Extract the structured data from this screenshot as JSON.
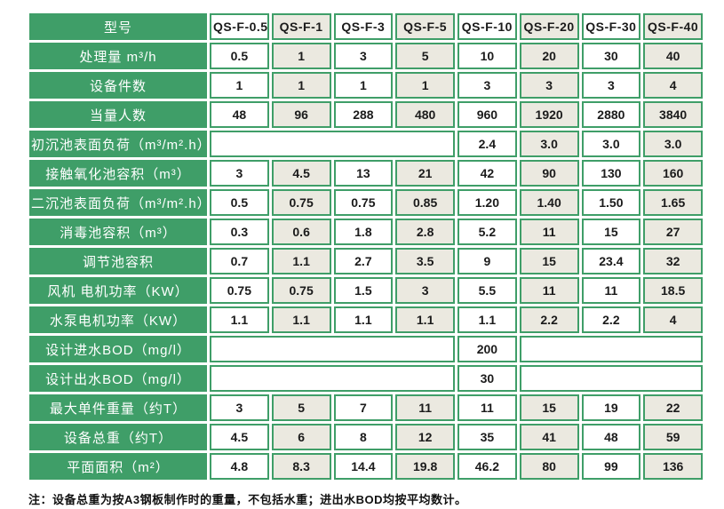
{
  "colors": {
    "green": "#3f9e68",
    "beige": "#ebe9e0",
    "white": "#ffffff"
  },
  "table": {
    "header": {
      "label": "型号",
      "models": [
        "QS-F-0.5",
        "QS-F-1",
        "QS-F-3",
        "QS-F-5",
        "QS-F-10",
        "QS-F-20",
        "QS-F-30",
        "QS-F-40"
      ]
    },
    "rows": [
      {
        "label": "处理量 m³/h",
        "cells": [
          "0.5",
          "1",
          "3",
          "5",
          "10",
          "20",
          "30",
          "40"
        ]
      },
      {
        "label": "设备件数",
        "cells": [
          "1",
          "1",
          "1",
          "1",
          "3",
          "3",
          "3",
          "4"
        ]
      },
      {
        "label": "当量人数",
        "cells": [
          "48",
          "96",
          "288",
          "480",
          "960",
          "1920",
          "2880",
          "3840"
        ]
      },
      {
        "label": "初沉池表面负荷（m³/m².h）",
        "cells": [
          {
            "span": 4,
            "text": ""
          },
          "2.4",
          "3.0",
          "3.0",
          "3.0"
        ]
      },
      {
        "label": "接触氧化池容积（m³）",
        "cells": [
          "3",
          "4.5",
          "13",
          "21",
          "42",
          "90",
          "130",
          "160"
        ]
      },
      {
        "label": "二沉池表面负荷（m³/m².h）",
        "cells": [
          "0.5",
          "0.75",
          "0.75",
          "0.85",
          "1.20",
          "1.40",
          "1.50",
          "1.65"
        ]
      },
      {
        "label": "消毒池容积（m³）",
        "cells": [
          "0.3",
          "0.6",
          "1.8",
          "2.8",
          "5.2",
          "11",
          "15",
          "27"
        ]
      },
      {
        "label": "调节池容积",
        "cells": [
          "0.7",
          "1.1",
          "2.7",
          "3.5",
          "9",
          "15",
          "23.4",
          "32"
        ]
      },
      {
        "label": "风机 电机功率（KW）",
        "cells": [
          "0.75",
          "0.75",
          "1.5",
          "3",
          "5.5",
          "11",
          "11",
          "18.5"
        ]
      },
      {
        "label": "水泵电机功率（KW）",
        "cells": [
          "1.1",
          "1.1",
          "1.1",
          "1.1",
          "1.1",
          "2.2",
          "2.2",
          "4"
        ]
      },
      {
        "label": "设计进水BOD（mg/l）",
        "cells": [
          {
            "span": 4,
            "text": ""
          },
          "200",
          {
            "span": 3,
            "text": ""
          }
        ]
      },
      {
        "label": "设计出水BOD（mg/l）",
        "cells": [
          {
            "span": 4,
            "text": ""
          },
          "30",
          {
            "span": 3,
            "text": ""
          }
        ]
      },
      {
        "label": "最大单件重量（约T）",
        "cells": [
          "3",
          "5",
          "7",
          "11",
          "11",
          "15",
          "19",
          "22"
        ]
      },
      {
        "label": "设备总重（约T）",
        "cells": [
          "4.5",
          "6",
          "8",
          "12",
          "35",
          "41",
          "48",
          "59"
        ]
      },
      {
        "label": "平面面积（m²）",
        "cells": [
          "4.8",
          "8.3",
          "14.4",
          "19.8",
          "46.2",
          "80",
          "99",
          "136"
        ]
      }
    ]
  },
  "note": "注：设备总重为按A3钢板制作时的重量，不包括水重；进出水BOD均按平均数计。"
}
